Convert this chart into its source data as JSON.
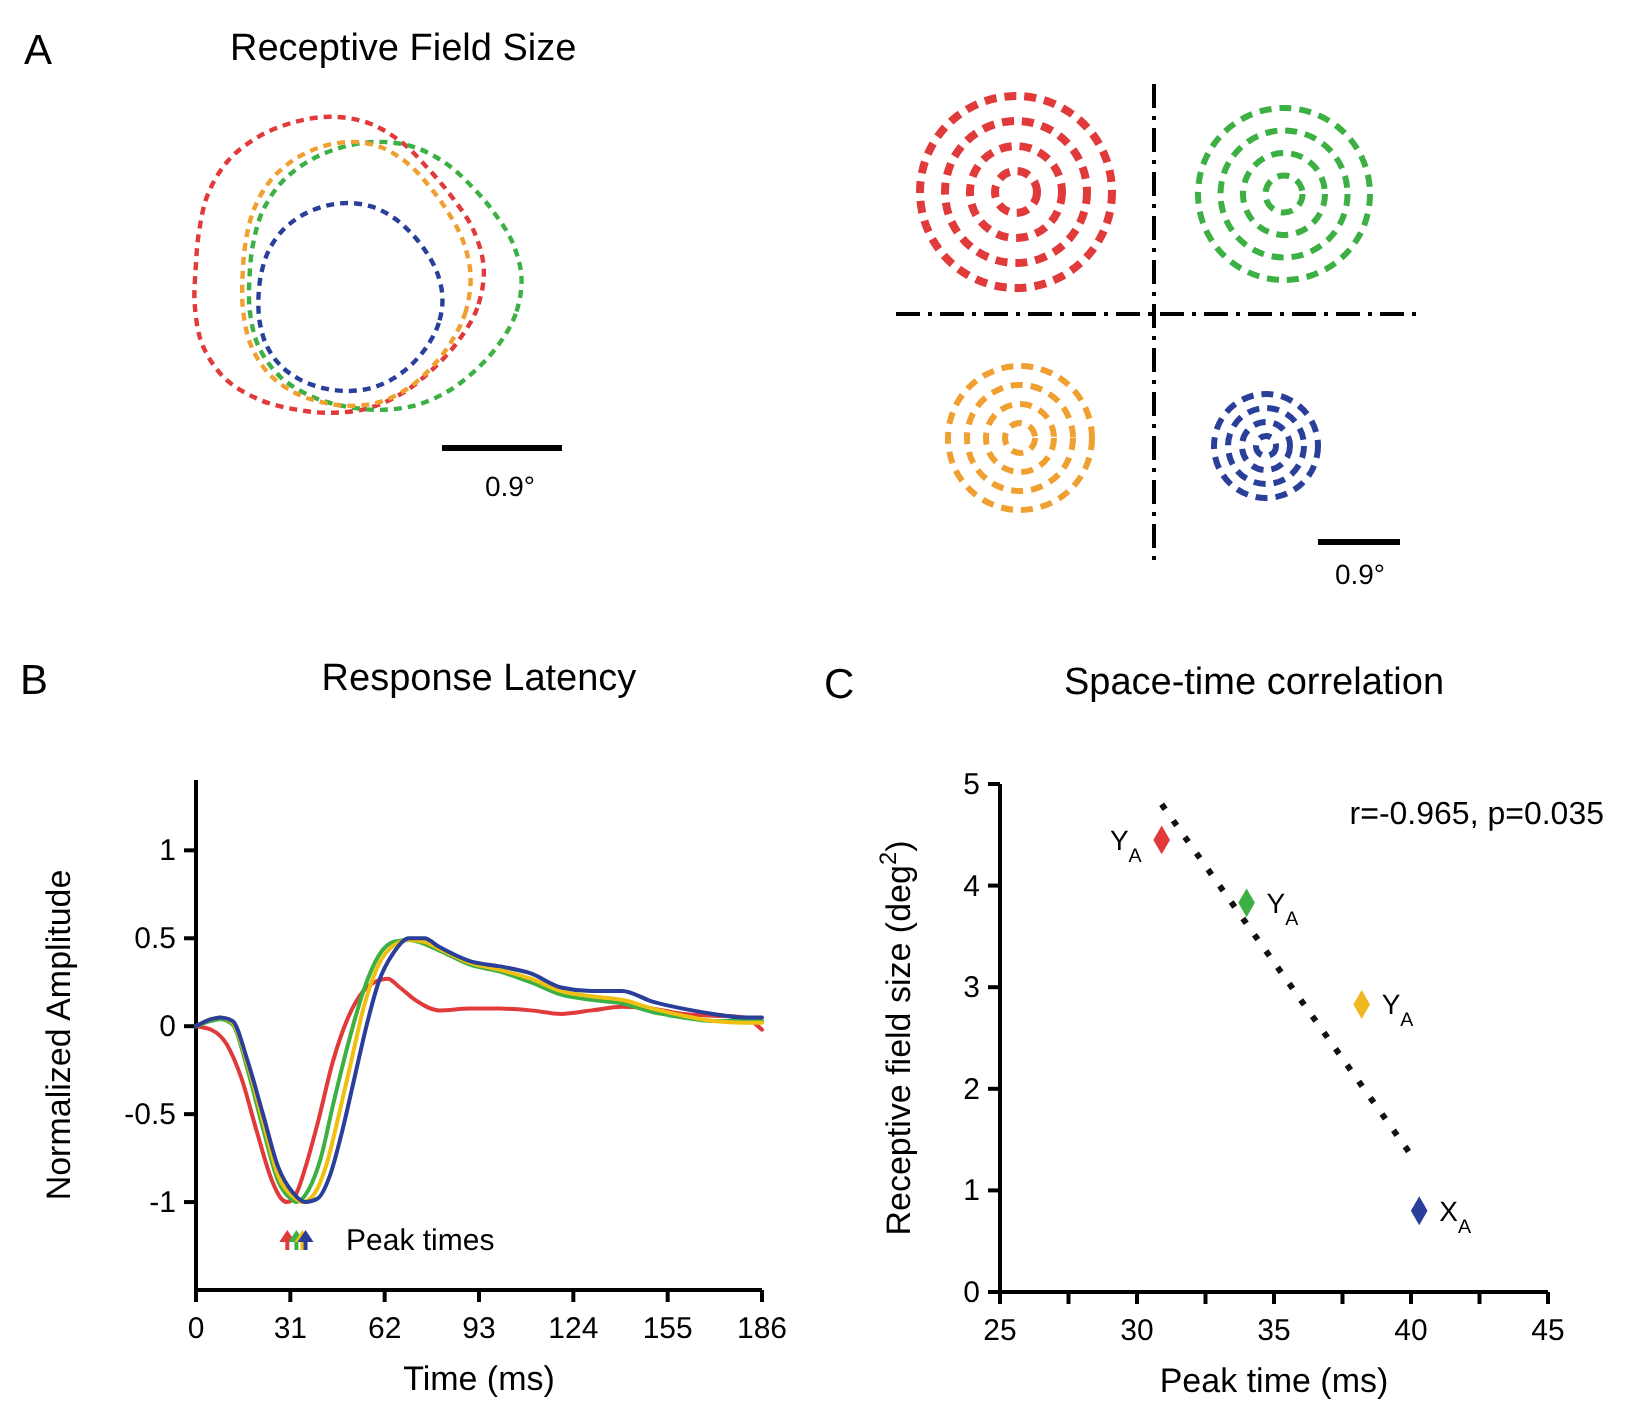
{
  "chart_data": [
    {
      "type": "other",
      "title": "Receptive Field Size",
      "annotations": [
        "A",
        "0.9°",
        "0.9°"
      ]
    },
    {
      "type": "line",
      "title": "Response Latency",
      "xlabel": "Time (ms)",
      "ylabel": "Normalized Amplitude",
      "xlim": [
        0,
        186
      ],
      "ylim": [
        -1.5,
        1.4
      ],
      "xticks": [
        0,
        31,
        62,
        93,
        124,
        155,
        186
      ],
      "yticks": [
        -1,
        -0.5,
        0,
        0.5,
        1
      ],
      "annotations": [
        "B",
        "Peak times"
      ],
      "series": [
        {
          "color": "#e03a3a",
          "x": [
            0,
            5,
            10,
            15,
            20,
            25,
            28,
            30,
            33,
            36,
            40,
            45,
            50,
            55,
            60,
            63,
            67,
            72,
            80,
            90,
            100,
            110,
            120,
            130,
            140,
            150,
            160,
            170,
            180,
            186
          ],
          "values": [
            0,
            -0.02,
            -0.1,
            -0.3,
            -0.6,
            -0.88,
            -0.98,
            -1,
            -0.95,
            -0.8,
            -0.55,
            -0.2,
            0.05,
            0.2,
            0.26,
            0.27,
            0.22,
            0.15,
            0.09,
            0.1,
            0.1,
            0.09,
            0.07,
            0.09,
            0.11,
            0.1,
            0.07,
            0.06,
            0.05,
            -0.02
          ]
        },
        {
          "color": "#3cb043",
          "x": [
            0,
            5,
            8,
            12,
            17,
            22,
            27,
            31,
            33,
            37,
            41,
            45,
            50,
            55,
            60,
            65,
            70,
            80,
            90,
            100,
            110,
            120,
            130,
            140,
            150,
            160,
            170,
            180,
            186
          ],
          "values": [
            0,
            0.03,
            0.04,
            0.01,
            -0.25,
            -0.58,
            -0.88,
            -0.98,
            -1,
            -0.93,
            -0.75,
            -0.45,
            -0.1,
            0.2,
            0.4,
            0.48,
            0.49,
            0.43,
            0.35,
            0.31,
            0.25,
            0.18,
            0.15,
            0.13,
            0.08,
            0.05,
            0.03,
            0.03,
            0.03
          ]
        },
        {
          "color": "#f0c010",
          "x": [
            0,
            5,
            8,
            12,
            17,
            22,
            27,
            32,
            35,
            39,
            43,
            47,
            51,
            55,
            60,
            65,
            70,
            75,
            80,
            90,
            100,
            110,
            120,
            130,
            140,
            150,
            160,
            170,
            180,
            186
          ],
          "values": [
            0,
            0.04,
            0.05,
            0.02,
            -0.22,
            -0.54,
            -0.85,
            -0.97,
            -1,
            -0.95,
            -0.78,
            -0.5,
            -0.2,
            0.1,
            0.35,
            0.46,
            0.49,
            0.48,
            0.44,
            0.36,
            0.32,
            0.27,
            0.2,
            0.17,
            0.15,
            0.1,
            0.06,
            0.03,
            0.02,
            0.02
          ]
        },
        {
          "color": "#2a3f9a",
          "x": [
            0,
            5,
            8,
            12,
            17,
            22,
            27,
            32,
            36,
            40,
            44,
            48,
            52,
            56,
            60,
            65,
            70,
            75,
            80,
            90,
            100,
            110,
            120,
            130,
            140,
            150,
            160,
            170,
            180,
            186
          ],
          "values": [
            0,
            0.04,
            0.05,
            0.03,
            -0.2,
            -0.5,
            -0.8,
            -0.95,
            -1,
            -0.98,
            -0.85,
            -0.6,
            -0.3,
            0,
            0.25,
            0.42,
            0.5,
            0.5,
            0.45,
            0.37,
            0.34,
            0.3,
            0.22,
            0.2,
            0.2,
            0.14,
            0.1,
            0.07,
            0.05,
            0.05
          ]
        }
      ]
    },
    {
      "type": "scatter",
      "title": "Space-time correlation",
      "xlabel": "Peak time (ms)",
      "ylabel": "Receptive field size (deg$^{2}$)",
      "xlim": [
        25,
        45
      ],
      "ylim": [
        0,
        5
      ],
      "xticks": [
        25,
        {
          "value": 27.5,
          "label": null
        },
        30,
        {
          "value": 32.5,
          "label": null
        },
        35,
        {
          "value": 37.5,
          "label": null
        },
        40,
        {
          "value": 42.5,
          "label": null
        },
        45
      ],
      "yticks": [
        0,
        1,
        2,
        3,
        4,
        5
      ],
      "marker": "diamond",
      "annotations": [
        "C",
        "r=-0.965, p=0.035"
      ],
      "series": [
        {
          "name": "Y$_{A}$",
          "color": "#e03a3a",
          "x": [
            30.9
          ],
          "values": [
            4.45
          ]
        },
        {
          "name": "Y$_{A}$",
          "color": "#3cb043",
          "x": [
            34
          ],
          "values": [
            3.83
          ]
        },
        {
          "name": "Y$_{A}$",
          "color": "#f0b820",
          "x": [
            38.2
          ],
          "values": [
            2.83
          ]
        },
        {
          "name": "X$_{A}$",
          "color": "#2a3f9a",
          "x": [
            40.3
          ],
          "values": [
            0.8
          ]
        },
        {
          "type": "line",
          "color": "#111111",
          "line_style": "dotted",
          "marker": "none",
          "x": [
            30.9,
            40
          ],
          "values": [
            4.8,
            1.35
          ]
        }
      ]
    }
  ]
}
